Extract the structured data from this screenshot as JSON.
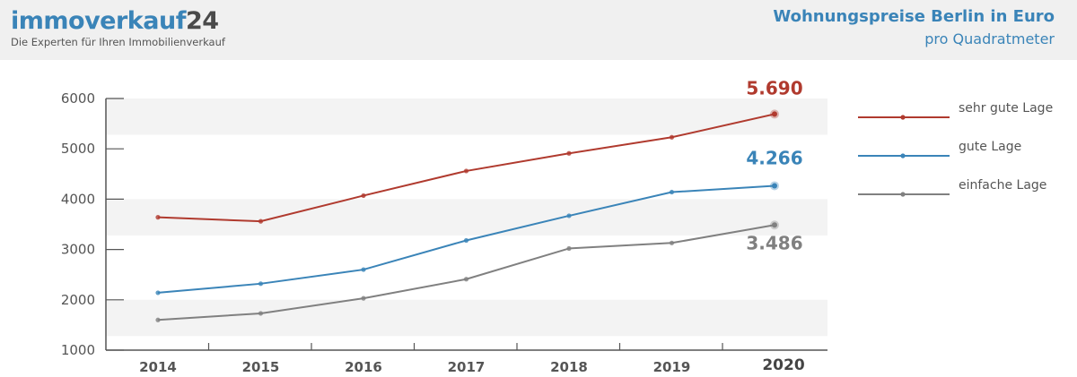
{
  "header": {
    "logo_main": "immoverkauf",
    "logo_num": "24",
    "tagline": "Die Experten für Ihren Immobilienverkauf",
    "title": "Wohnungspreise Berlin in Euro",
    "subtitle": "pro Quadratmeter"
  },
  "chart_data": {
    "type": "line",
    "title": "Wohnungspreise Berlin in Euro",
    "subtitle": "pro Quadratmeter",
    "x": [
      "2014",
      "2015",
      "2016",
      "2017",
      "2018",
      "2019",
      "2020"
    ],
    "ylim": [
      1000,
      6000
    ],
    "yticks": [
      "6000",
      "5000",
      "4000",
      "3000",
      "2000",
      "1000"
    ],
    "grid": "alternating horizontal bands",
    "legend_position": "right",
    "series": [
      {
        "name": "sehr gute Lage",
        "color": "#b03a2e",
        "values": [
          3640,
          3560,
          4070,
          4560,
          4910,
          5230,
          5690
        ],
        "end_label": "5.690"
      },
      {
        "name": "gute Lage",
        "color": "#3a84b8",
        "values": [
          2140,
          2320,
          2600,
          3180,
          3670,
          4140,
          4266
        ],
        "end_label": "4.266"
      },
      {
        "name": "einfache Lage",
        "color": "#808080",
        "values": [
          1600,
          1730,
          2030,
          2410,
          3020,
          3130,
          3486
        ],
        "end_label": "3.486"
      }
    ]
  }
}
